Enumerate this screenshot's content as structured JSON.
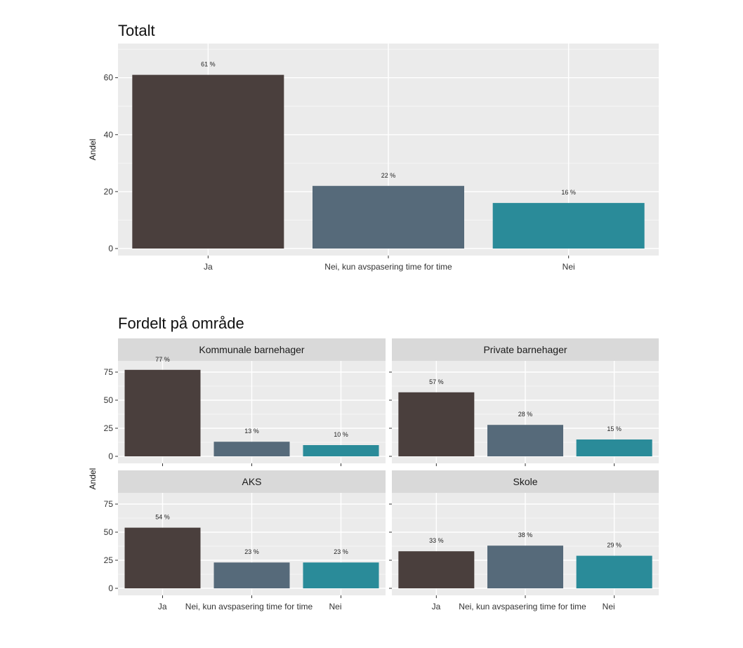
{
  "chart_data": [
    {
      "type": "bar",
      "title": "Totalt",
      "ylabel": "Andel",
      "xlabel": "",
      "ylim": [
        0,
        72
      ],
      "yticks": [
        0,
        20,
        40,
        60
      ],
      "grid": true,
      "categories": [
        "Ja",
        "Nei, kun avspasering time for time",
        "Nei"
      ],
      "values": [
        61,
        22,
        16
      ],
      "labels": [
        "61 %",
        "22 %",
        "16 %"
      ]
    },
    {
      "type": "bar",
      "title": "Fordelt på område",
      "ylabel": "Andel",
      "xlabel": "",
      "ylim": [
        0,
        85
      ],
      "yticks": [
        0,
        25,
        50,
        75
      ],
      "grid": true,
      "categories": [
        "Ja",
        "Nei, kun avspasering time for time",
        "Nei"
      ],
      "facets": [
        {
          "name": "Kommunale barnehager",
          "values": [
            77,
            13,
            10
          ],
          "labels": [
            "77 %",
            "13 %",
            "10 %"
          ]
        },
        {
          "name": "Private barnehager",
          "values": [
            57,
            28,
            15
          ],
          "labels": [
            "57 %",
            "28 %",
            "15 %"
          ]
        },
        {
          "name": "AKS",
          "values": [
            54,
            23,
            23
          ],
          "labels": [
            "54 %",
            "23 %",
            "23 %"
          ]
        },
        {
          "name": "Skole",
          "values": [
            33,
            38,
            29
          ],
          "labels": [
            "33 %",
            "38 %",
            "29 %"
          ]
        }
      ]
    }
  ],
  "colors": {
    "Ja": "#4a3f3d",
    "Nei, kun avspasering time for time": "#566a7a",
    "Nei": "#2a8b99",
    "panel": "#ebebeb",
    "strip": "#d9d9d9",
    "grid": "#ffffff"
  }
}
